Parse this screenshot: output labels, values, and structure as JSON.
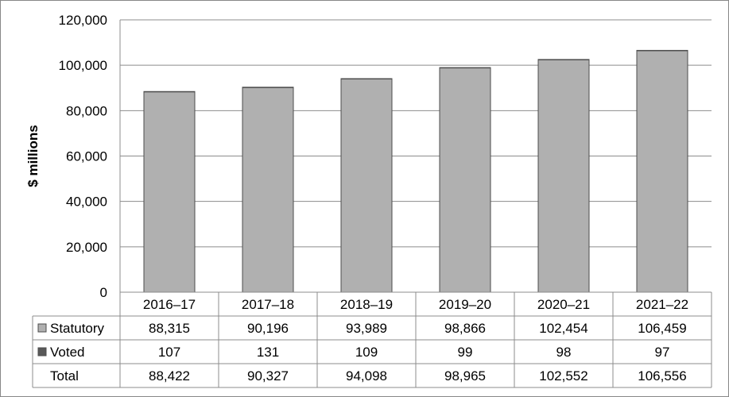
{
  "chart_data": {
    "type": "bar",
    "ylabel": "$ millions",
    "ylim": [
      0,
      120000
    ],
    "yticks": [
      0,
      20000,
      40000,
      60000,
      80000,
      100000,
      120000
    ],
    "ytick_labels": [
      "0",
      "20,000",
      "40,000",
      "60,000",
      "80,000",
      "100,000",
      "120,000"
    ],
    "grid": true,
    "stacked": true,
    "categories": [
      "2016–17",
      "2017–18",
      "2018–19",
      "2019–20",
      "2020–21",
      "2021–22"
    ],
    "series": [
      {
        "name": "Statutory",
        "color": "#b0b0b0",
        "values": [
          88315,
          90196,
          93989,
          98866,
          102454,
          106459
        ],
        "labels": [
          "88,315",
          "90,196",
          "93,989",
          "98,866",
          "102,454",
          "106,459"
        ]
      },
      {
        "name": "Voted",
        "color": "#595959",
        "values": [
          107,
          131,
          109,
          99,
          98,
          97
        ],
        "labels": [
          "107",
          "131",
          "109",
          "99",
          "98",
          "97"
        ]
      }
    ],
    "total": {
      "name": "Total",
      "values": [
        88422,
        90327,
        94098,
        98965,
        102552,
        106556
      ],
      "labels": [
        "88,422",
        "90,327",
        "94,098",
        "98,965",
        "102,552",
        "106,556"
      ]
    }
  }
}
